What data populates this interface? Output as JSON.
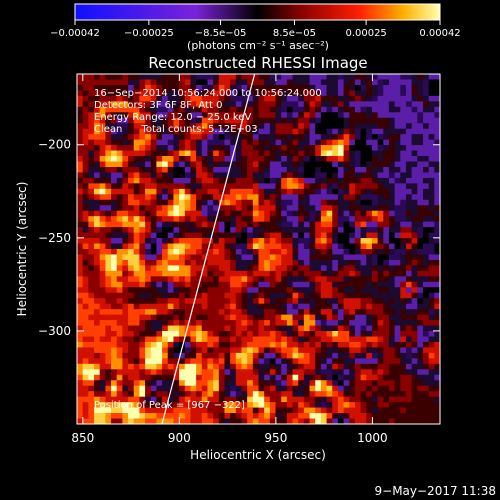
{
  "chart_data": {
    "type": "heatmap",
    "title": "Reconstructed RHESSI Image",
    "xlabel": "Heliocentric X (arcsec)",
    "ylabel": "Heliocentric Y (arcsec)",
    "xlim": [
      847,
      1035
    ],
    "ylim": [
      -350,
      -162
    ],
    "x_ticks": [
      850,
      900,
      950,
      1000
    ],
    "y_ticks": [
      -200,
      -250,
      -300
    ],
    "colorbar": {
      "range": [
        -0.00042,
        0.00042
      ],
      "tick_values": [
        -0.00042,
        -0.00025,
        -8.5e-05,
        8.5e-05,
        0.00025,
        0.00042
      ],
      "tick_labels": [
        "−0.00042",
        "−0.00025",
        "−8.5e−05",
        "8.5e−05",
        "0.00025",
        "0.00042"
      ],
      "unit_label": "(photons cm⁻² s⁻¹ asec⁻²)"
    },
    "annotations": [
      "16−Sep−2014 10:56:24.000 to 10:56:24.000",
      "Detectors: 3F 6F 8F, Att 0",
      "Energy Range: 12.0 − 25.0 keV",
      "Clean      Total counts: 5.12E+03"
    ],
    "peak_label": "Position of Peak = [967 −322]",
    "peak_position": [
      967,
      -322
    ],
    "limb_line": [
      [
        891,
        -350
      ],
      [
        939,
        -162
      ]
    ]
  },
  "footer_timestamp": "9−May−2017 11:38"
}
